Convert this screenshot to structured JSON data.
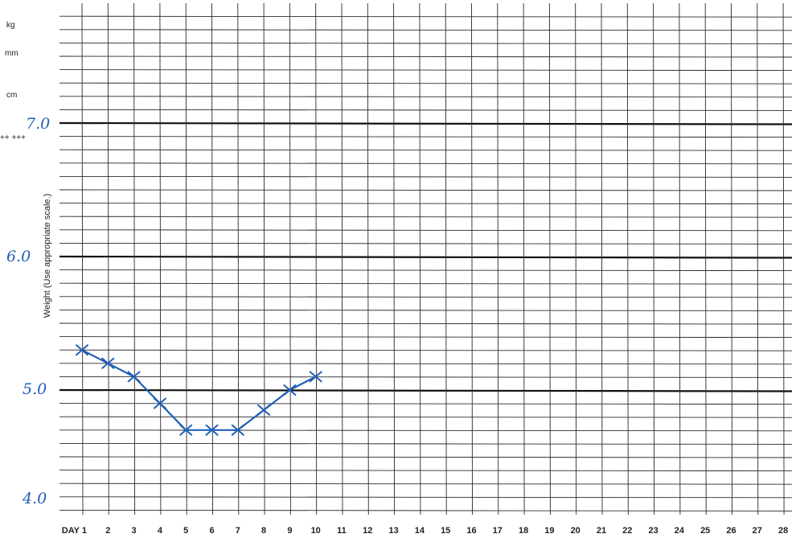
{
  "side_labels": [
    "kg",
    "mm",
    "cm",
    "++ +++"
  ],
  "chart_data": {
    "type": "line",
    "ylabel": "Weight (Use appropriate scale.)",
    "x_tick_labels": [
      "DAY 1",
      "2",
      "3",
      "4",
      "5",
      "6",
      "7",
      "8",
      "9",
      "10",
      "11",
      "12",
      "13",
      "14",
      "15",
      "16",
      "17",
      "18",
      "19",
      "20",
      "21",
      "22",
      "23",
      "24",
      "25",
      "26",
      "27",
      "28"
    ],
    "y_tick_labels": [
      "7.0",
      "6.0",
      "5.0",
      "4.0"
    ],
    "y_ticks": [
      7.0,
      6.0,
      5.0,
      4.0
    ],
    "ylim": [
      4.0,
      7.0
    ],
    "xlim": [
      1,
      28
    ],
    "grid": true,
    "series": [
      {
        "x": [
          1,
          2,
          3,
          4,
          5,
          6,
          7,
          8,
          9,
          10
        ],
        "y": [
          5.3,
          5.2,
          5.1,
          4.9,
          4.7,
          4.7,
          4.7,
          4.85,
          5.0,
          5.1
        ],
        "color": "#1f5fb8",
        "marker": "x"
      }
    ]
  }
}
